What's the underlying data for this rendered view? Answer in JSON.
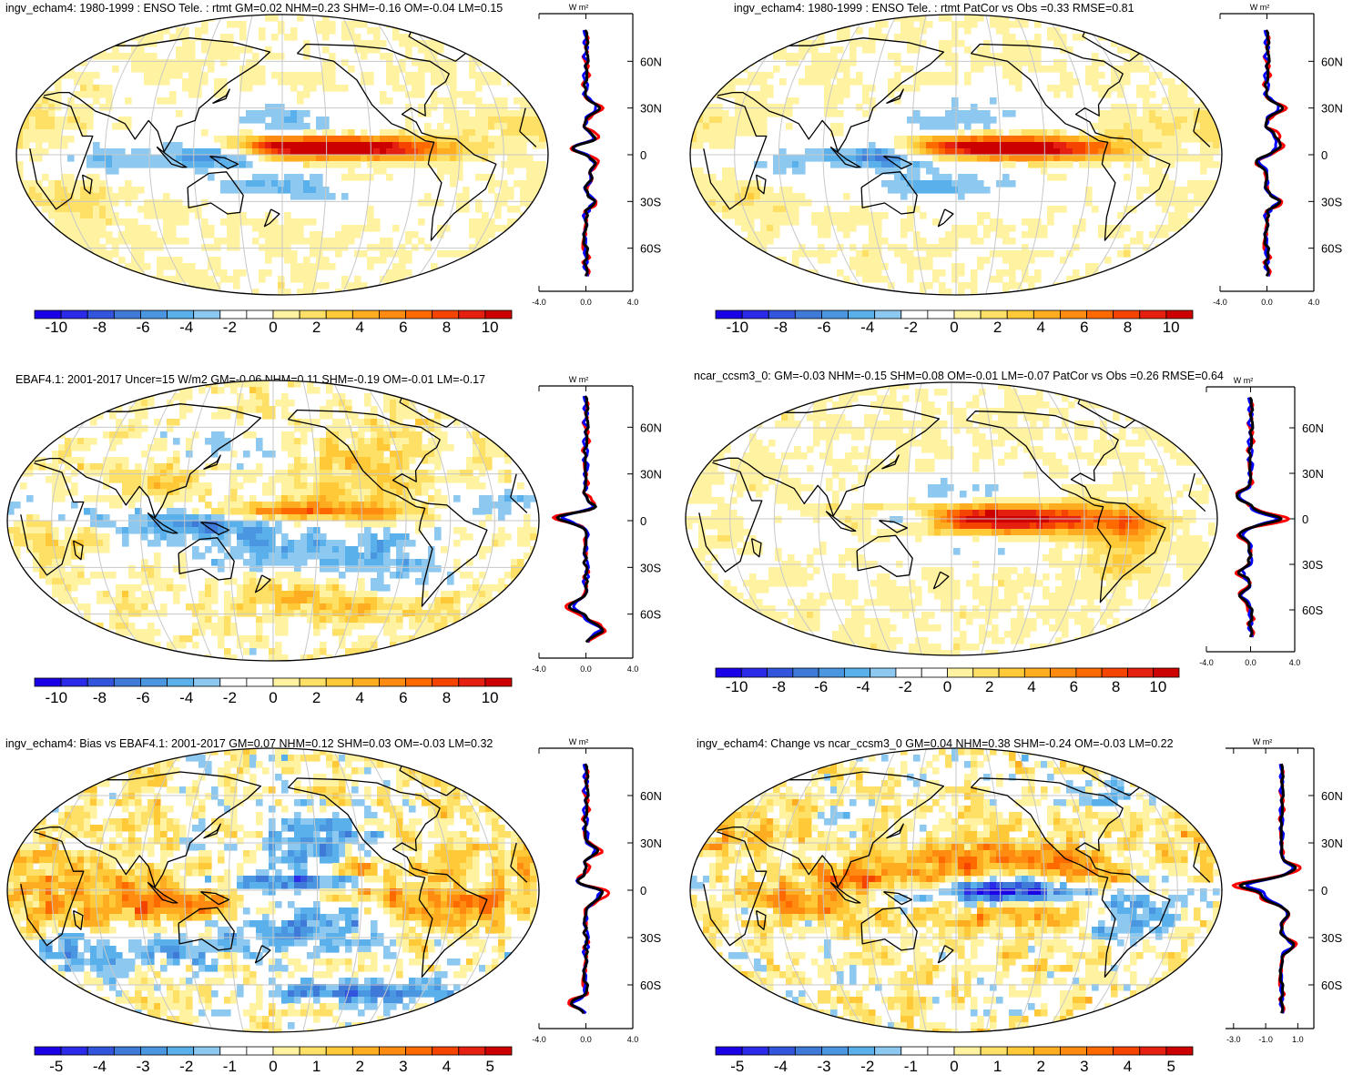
{
  "colors": {
    "scale_min_to_max": [
      "#1a00e6",
      "#2a2ae8",
      "#3355dd",
      "#3f7ad8",
      "#4a96e0",
      "#5ab0ea",
      "#8cc8f0",
      "#ffffff",
      "#ffffff",
      "#fff2a0",
      "#ffe066",
      "#ffc938",
      "#ffad20",
      "#ff8c10",
      "#ff6a00",
      "#f54400",
      "#e52010",
      "#cc0000"
    ],
    "zonal_obs": "#ff0000",
    "zonal_model": "#0000ff",
    "zonal_diff": "#000000",
    "coast": "#000000",
    "grid": "#c8c8c8"
  },
  "chart_data": [
    {
      "id": "p1",
      "type": "heatmap",
      "title": "ingv_echam4: 1980-1999 : ENSO Tele. : rtmt GM=0.02 NHM=0.23 SHM=-0.16 OM=-0.04 LM=0.15",
      "colorbar": {
        "ticks": [
          "-10",
          "-8",
          "-6",
          "-4",
          "-2",
          "0",
          "2",
          "4",
          "6",
          "8",
          "10"
        ],
        "range": [
          -11,
          11
        ]
      },
      "zonal": {
        "unit": "W m²",
        "xticks": [
          "-4.0",
          "0.0",
          "4.0"
        ],
        "xlim": [
          -4,
          4
        ],
        "lat_labels": [
          "60N",
          "30N",
          "0",
          "30S",
          "60S"
        ],
        "pos_anoms": [
          [
            5,
            -1.6
          ],
          [
            10,
            1.2
          ],
          [
            -5,
            1.0
          ],
          [
            -15,
            0.6
          ],
          [
            30,
            1.4
          ],
          [
            -30,
            0.8
          ]
        ],
        "pos_scale": 1.0
      },
      "anomalies": [
        [
          -170,
          5,
          40,
          5,
          9
        ],
        [
          -140,
          5,
          40,
          5,
          6
        ],
        [
          -95,
          3,
          30,
          5,
          4
        ],
        [
          -10,
          20,
          35,
          8,
          1.8
        ],
        [
          130,
          0,
          25,
          6,
          -7
        ],
        [
          -170,
          22,
          45,
          10,
          -3
        ],
        [
          -160,
          -20,
          50,
          10,
          -2.5
        ],
        [
          60,
          -3,
          25,
          8,
          -3
        ],
        [
          30,
          -30,
          25,
          8,
          1.5
        ],
        [
          -130,
          -15,
          20,
          5,
          1.5
        ],
        [
          160,
          -20,
          30,
          5,
          -2
        ]
      ],
      "noise_amp": 1.0
    },
    {
      "id": "p2",
      "type": "heatmap",
      "title": "ingv_echam4: 1980-1999 : ENSO Tele. : rtmt PatCor vs Obs =0.33 RMSE=0.81",
      "colorbar": {
        "ticks": [
          "-10",
          "-8",
          "-6",
          "-4",
          "-2",
          "0",
          "2",
          "4",
          "6",
          "8",
          "10"
        ],
        "range": [
          -11,
          11
        ]
      },
      "zonal": {
        "unit": "W m²",
        "xticks": [
          "-4.0",
          "0.0",
          "4.0"
        ],
        "xlim": [
          -4,
          4
        ],
        "lat_labels": [
          "60N",
          "30N",
          "0",
          "30S",
          "60S"
        ],
        "pos_anoms": [
          [
            5,
            1.2
          ],
          [
            -5,
            -1.0
          ],
          [
            30,
            1.6
          ],
          [
            -30,
            1.2
          ],
          [
            12,
            0.8
          ]
        ],
        "pos_scale": 1.0
      },
      "anomalies": [
        [
          -170,
          5,
          40,
          5,
          9
        ],
        [
          -140,
          5,
          40,
          5,
          6
        ],
        [
          -95,
          3,
          30,
          5,
          4
        ],
        [
          -10,
          20,
          35,
          8,
          1.8
        ],
        [
          130,
          0,
          25,
          6,
          -7
        ],
        [
          -170,
          22,
          45,
          10,
          -3
        ],
        [
          -160,
          -20,
          50,
          10,
          -2.5
        ],
        [
          60,
          -3,
          25,
          8,
          -3
        ],
        [
          30,
          -30,
          25,
          8,
          1.5
        ],
        [
          -130,
          -15,
          20,
          5,
          1.5
        ],
        [
          160,
          -20,
          30,
          5,
          -2
        ]
      ],
      "noise_amp": 1.0
    },
    {
      "id": "p3",
      "type": "heatmap",
      "title": "EBAF4.1: 2001-2017 Uncer=15 W/m2 GM=-0.06 NHM=0.11 SHM=-0.19 OM=-0.01 LM=-0.17",
      "colorbar": {
        "ticks": [
          "-10",
          "-8",
          "-6",
          "-4",
          "-2",
          "0",
          "2",
          "4",
          "6",
          "8",
          "10"
        ],
        "range": [
          -11,
          11
        ]
      },
      "zonal": {
        "unit": "W m²",
        "xticks": [
          "-4.0",
          "0.0",
          "4.0"
        ],
        "xlim": [
          -4,
          4
        ],
        "lat_labels": [
          "60N",
          "30N",
          "0",
          "30S",
          "60S"
        ],
        "pos_anoms": [
          [
            2,
            -3.0
          ],
          [
            8,
            1.0
          ],
          [
            -70,
            1.8
          ],
          [
            -55,
            -1.5
          ]
        ],
        "pos_scale": 1.0
      },
      "anomalies": [
        [
          -160,
          6,
          50,
          4,
          7
        ],
        [
          -120,
          30,
          25,
          18,
          3
        ],
        [
          -170,
          -20,
          50,
          12,
          -4
        ],
        [
          -100,
          -30,
          30,
          15,
          -3
        ],
        [
          130,
          0,
          30,
          8,
          -5
        ],
        [
          -150,
          -45,
          40,
          10,
          3
        ],
        [
          60,
          5,
          25,
          10,
          -2.5
        ],
        [
          100,
          20,
          20,
          10,
          2
        ],
        [
          -30,
          10,
          30,
          10,
          -2
        ],
        [
          30,
          -10,
          20,
          10,
          2
        ],
        [
          150,
          50,
          30,
          10,
          -2
        ],
        [
          -100,
          -55,
          50,
          5,
          2.5
        ]
      ],
      "noise_amp": 2.0
    },
    {
      "id": "p4",
      "type": "heatmap",
      "title": "ncar_ccsm3_0: GM=-0.03 NHM=-0.15 SHM=0.08 OM=-0.01 LM=-0.07 PatCor vs Obs =0.26 RMSE=0.64",
      "colorbar": {
        "ticks": [
          "-10",
          "-8",
          "-6",
          "-4",
          "-2",
          "0",
          "2",
          "4",
          "6",
          "8",
          "10"
        ],
        "range": [
          -11,
          11
        ]
      },
      "zonal": {
        "unit": "W m²",
        "xticks": [
          "-4.0",
          "0.0",
          "4.0"
        ],
        "xlim": [
          -4,
          4
        ],
        "lat_labels": [
          "60N",
          "30N",
          "0",
          "30S",
          "60S"
        ],
        "pos_anoms": [
          [
            0,
            3.2
          ],
          [
            15,
            -1.5
          ],
          [
            -10,
            -1.2
          ],
          [
            -35,
            -1.2
          ],
          [
            -50,
            -1.0
          ]
        ],
        "pos_scale": 1.0
      },
      "anomalies": [
        [
          -150,
          0,
          60,
          7,
          12
        ],
        [
          150,
          0,
          20,
          5,
          -9
        ],
        [
          -170,
          18,
          40,
          8,
          -3
        ],
        [
          -170,
          -18,
          40,
          8,
          -3
        ],
        [
          70,
          -5,
          30,
          10,
          -2.5
        ],
        [
          -60,
          -25,
          15,
          10,
          3
        ],
        [
          -60,
          -5,
          15,
          8,
          4
        ],
        [
          -20,
          0,
          20,
          10,
          -1.5
        ],
        [
          30,
          -5,
          20,
          10,
          1.5
        ]
      ],
      "noise_amp": 1.0
    },
    {
      "id": "p5",
      "type": "heatmap",
      "title": "ingv_echam4: Bias vs EBAF4.1: 2001-2017 GM=0.07 NHM=0.12 SHM=0.03 OM=-0.03 LM=0.32",
      "colorbar": {
        "ticks": [
          "-5",
          "-4",
          "-3",
          "-2",
          "-1",
          "0",
          "1",
          "2",
          "3",
          "4",
          "5"
        ],
        "range": [
          -5.5,
          5.5
        ]
      },
      "zonal": {
        "unit": "W m²",
        "xticks": [
          "-4.0",
          "0.0",
          "4.0"
        ],
        "xlim": [
          -4,
          4
        ],
        "lat_labels": [
          "60N",
          "30N",
          "0",
          "30S",
          "60S"
        ],
        "pos_anoms": [
          [
            5,
            -1.2
          ],
          [
            -5,
            1.0
          ],
          [
            0,
            1.5
          ],
          [
            -72,
            -1.5
          ],
          [
            25,
            1.2
          ]
        ],
        "pos_scale": 1.0
      },
      "anomalies": [
        [
          -150,
          5,
          60,
          4,
          -4
        ],
        [
          -120,
          5,
          30,
          10,
          4
        ],
        [
          110,
          -5,
          40,
          10,
          3
        ],
        [
          -150,
          30,
          25,
          15,
          -3
        ],
        [
          -150,
          -20,
          40,
          15,
          -2
        ],
        [
          -60,
          -10,
          25,
          15,
          2.5
        ],
        [
          20,
          0,
          40,
          20,
          1.5
        ],
        [
          -100,
          -65,
          50,
          5,
          -4
        ],
        [
          60,
          -40,
          60,
          10,
          -2
        ]
      ],
      "noise_amp": 1.5
    },
    {
      "id": "p6",
      "type": "heatmap",
      "title": "ingv_echam4: Change vs ncar_ccsm3_0 GM=0.04 NHM=0.38 SHM=-0.24 OM=-0.03 LM=0.22",
      "colorbar": {
        "ticks": [
          "-5",
          "-4",
          "-3",
          "-2",
          "-1",
          "0",
          "1",
          "2",
          "3",
          "4",
          "5"
        ],
        "range": [
          -5.5,
          5.5
        ]
      },
      "zonal": {
        "unit": "W m²",
        "xticks": [
          "-3.0",
          "-1.0",
          "1.0"
        ],
        "xlim": [
          -3.5,
          2
        ],
        "lat_labels": [
          "60N",
          "30N",
          "0",
          "30S",
          "60S"
        ],
        "pos_anoms": [
          [
            3,
            -6.0
          ],
          [
            14,
            2.0
          ],
          [
            -5,
            -2.5
          ],
          [
            -15,
            1.0
          ],
          [
            -35,
            1.8
          ]
        ],
        "pos_scale": 0.5
      },
      "anomalies": [
        [
          -150,
          0,
          60,
          6,
          -6
        ],
        [
          140,
          5,
          40,
          8,
          4
        ],
        [
          -140,
          20,
          40,
          8,
          3
        ],
        [
          -140,
          -15,
          40,
          8,
          2
        ],
        [
          70,
          -5,
          30,
          12,
          2
        ],
        [
          -60,
          -20,
          20,
          10,
          -3
        ],
        [
          -90,
          5,
          20,
          8,
          3
        ],
        [
          0,
          40,
          40,
          15,
          1.5
        ],
        [
          -40,
          60,
          40,
          10,
          -1.5
        ]
      ],
      "noise_amp": 1.5
    }
  ]
}
